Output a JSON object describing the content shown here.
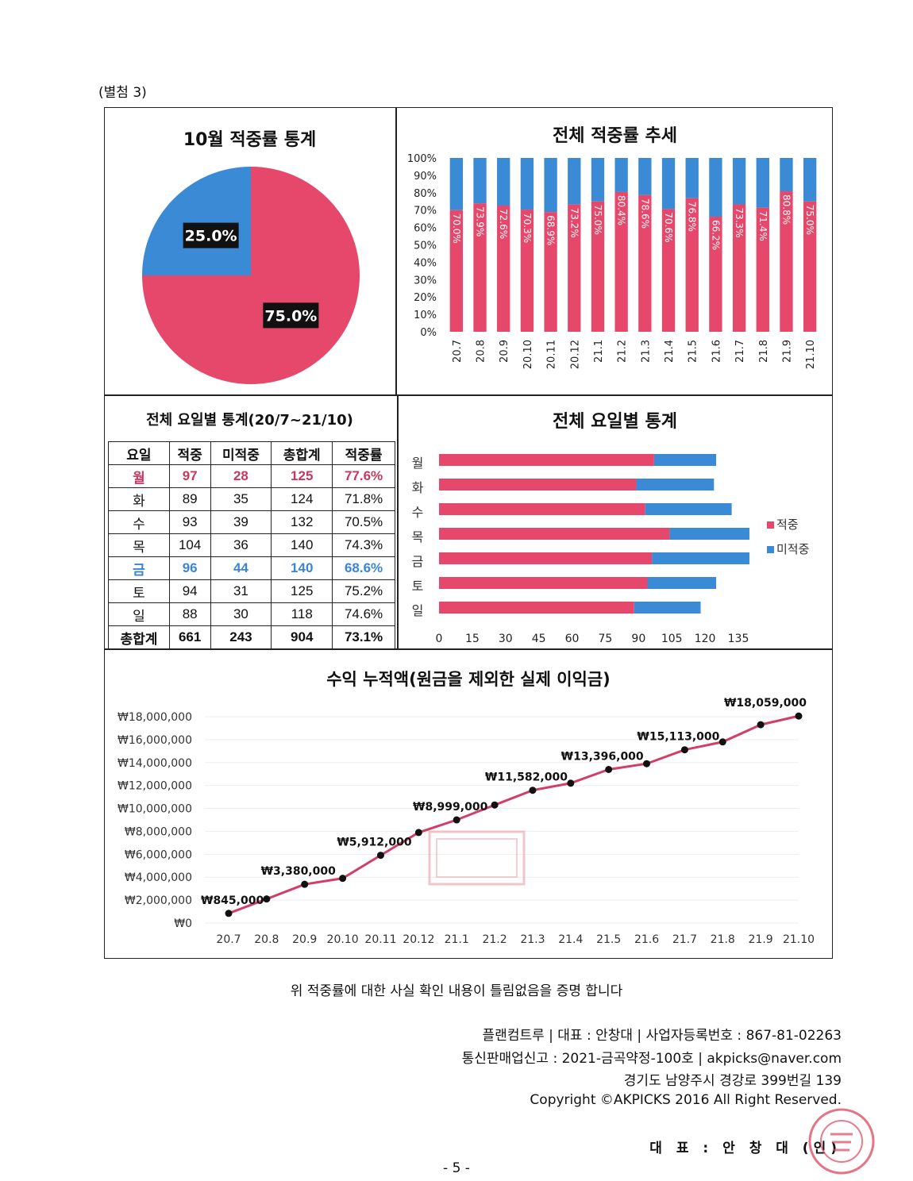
{
  "page": {
    "attachment_label": "(별첨 3)",
    "verification_text": "위 적중률에 대한 사실 확인 내용이 틀림없음을 증명 합니다",
    "footer": [
      "플랜컴트루  |  대표 : 안창대  |  사업자등록번호 : 867-81-02263",
      "통신판매업신고 : 2021-금곡약정-100호  |  akpicks@naver.com",
      "경기도 남양주시 경강로 399번길 139",
      "Copyright ©AKPICKS 2016 All Right Reserved."
    ],
    "representative": "대 표 : 안 창 대 (인)",
    "page_number": "- 5 -",
    "seal_text": "플랜컴트루",
    "colors": {
      "hit": "#e5486b",
      "miss": "#3a8ad6",
      "line": "#d13f68"
    }
  },
  "weekday_table": {
    "title": "전체 요일별 통계(20/7~21/10)",
    "headers": [
      "요일",
      "적중",
      "미적중",
      "총합계",
      "적중률"
    ],
    "rows": [
      [
        "월",
        "97",
        "28",
        "125",
        "77.6%"
      ],
      [
        "화",
        "89",
        "35",
        "124",
        "71.8%"
      ],
      [
        "수",
        "93",
        "39",
        "132",
        "70.5%"
      ],
      [
        "목",
        "104",
        "36",
        "140",
        "74.3%"
      ],
      [
        "금",
        "96",
        "44",
        "140",
        "68.6%"
      ],
      [
        "토",
        "94",
        "31",
        "125",
        "75.2%"
      ],
      [
        "일",
        "88",
        "30",
        "118",
        "74.6%"
      ]
    ],
    "total": [
      "총합계",
      "661",
      "243",
      "904",
      "73.1%"
    ]
  },
  "chart_data": [
    {
      "type": "pie",
      "title": "10월 적중률 통계",
      "slices": [
        {
          "label": "75.0%",
          "value": 75.0,
          "color": "#e5486b"
        },
        {
          "label": "25.0%",
          "value": 25.0,
          "color": "#3a8ad6"
        }
      ]
    },
    {
      "type": "bar",
      "stacked": true,
      "title": "전체 적중률 추세",
      "categories": [
        "20.7",
        "20.8",
        "20.9",
        "20.10",
        "20.11",
        "20.12",
        "21.1",
        "21.2",
        "21.3",
        "21.4",
        "21.5",
        "21.6",
        "21.7",
        "21.8",
        "21.9",
        "21.10"
      ],
      "values": [
        70.0,
        73.9,
        72.6,
        70.3,
        68.9,
        73.2,
        75.0,
        80.4,
        78.6,
        70.6,
        76.8,
        66.2,
        73.3,
        71.4,
        80.8,
        75.0
      ],
      "data_labels": [
        "70.0%",
        "73.9%",
        "72.6%",
        "70.3%",
        "68.9%",
        "73.2%",
        "75.0%",
        "80.4%",
        "78.6%",
        "70.6%",
        "76.8%",
        "66.2%",
        "73.3%",
        "71.4%",
        "80.8%",
        "75.0%"
      ],
      "yticks": [
        "0%",
        "10%",
        "20%",
        "30%",
        "40%",
        "50%",
        "60%",
        "70%",
        "80%",
        "90%",
        "100%"
      ],
      "ylim": [
        0,
        100
      ]
    },
    {
      "type": "bar",
      "orientation": "horizontal",
      "stacked": true,
      "title": "전체 요일별 통계",
      "categories": [
        "월",
        "화",
        "수",
        "목",
        "금",
        "토",
        "일"
      ],
      "series": [
        {
          "name": "적중",
          "values": [
            97,
            89,
            93,
            104,
            96,
            94,
            88
          ],
          "color": "#e5486b"
        },
        {
          "name": "미적중",
          "values": [
            28,
            35,
            39,
            36,
            44,
            31,
            30
          ],
          "color": "#3a8ad6"
        }
      ],
      "xticks": [
        "0",
        "15",
        "30",
        "45",
        "60",
        "75",
        "90",
        "105",
        "120",
        "135"
      ],
      "xlim": [
        0,
        135
      ],
      "legend": "right"
    },
    {
      "type": "line",
      "title": "수익 누적액(원금을 제외한 실제 이익금)",
      "categories": [
        "20.7",
        "20.8",
        "20.9",
        "20.10",
        "20.11",
        "20.12",
        "21.1",
        "21.2",
        "21.3",
        "21.4",
        "21.5",
        "21.6",
        "21.7",
        "21.8",
        "21.9",
        "21.10"
      ],
      "values": [
        845000,
        2100000,
        3380000,
        3900000,
        5912000,
        7900000,
        8999000,
        10300000,
        11582000,
        12200000,
        13396000,
        13900000,
        15113000,
        15800000,
        17300000,
        18059000
      ],
      "data_labels": [
        {
          "index": 0,
          "text": "₩845,000"
        },
        {
          "index": 2,
          "text": "₩3,380,000"
        },
        {
          "index": 4,
          "text": "₩5,912,000"
        },
        {
          "index": 6,
          "text": "₩8,999,000"
        },
        {
          "index": 8,
          "text": "₩11,582,000"
        },
        {
          "index": 10,
          "text": "₩13,396,000"
        },
        {
          "index": 12,
          "text": "₩15,113,000"
        },
        {
          "index": 15,
          "text": "₩18,059,000"
        }
      ],
      "yticks": [
        "₩0",
        "₩2,000,000",
        "₩4,000,000",
        "₩6,000,000",
        "₩8,000,000",
        "₩10,000,000",
        "₩12,000,000",
        "₩14,000,000",
        "₩16,000,000",
        "₩18,000,000"
      ],
      "ylim": [
        0,
        18000000
      ]
    }
  ]
}
